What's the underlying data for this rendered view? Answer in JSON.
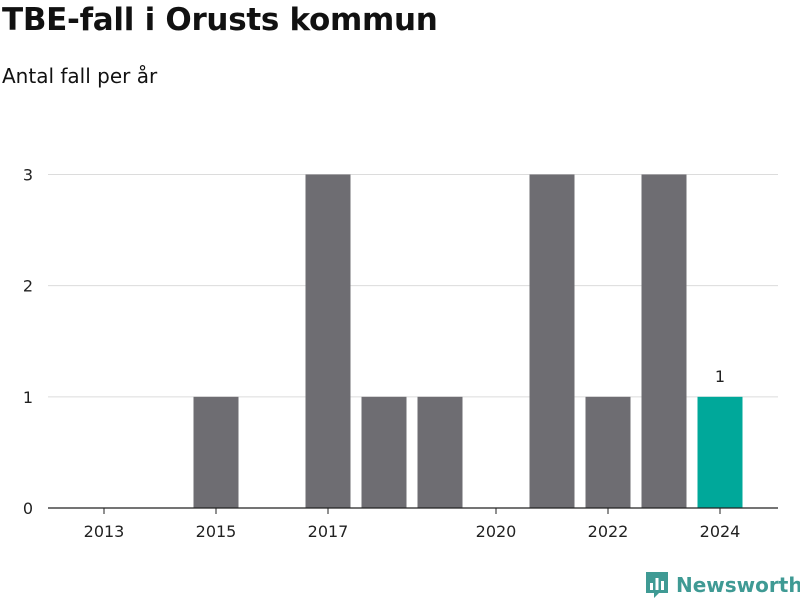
{
  "header": {
    "title": "TBE-fall i Orusts kommun",
    "subtitle": "Antal fall per år"
  },
  "brand": {
    "name": "Newsworthy",
    "color": "#3f9a94",
    "icon": "bar-chart-logo-icon"
  },
  "chart_data": {
    "type": "bar",
    "categories": [
      "2013",
      "2014",
      "2015",
      "2016",
      "2017",
      "2018",
      "2019",
      "2020",
      "2021",
      "2022",
      "2023",
      "2024"
    ],
    "values": [
      0,
      0,
      1,
      0,
      3,
      1,
      1,
      0,
      3,
      1,
      3,
      1
    ],
    "x_tick_labels": [
      "2013",
      "2015",
      "2017",
      "2020",
      "2022",
      "2024"
    ],
    "y_ticks": [
      0,
      1,
      2,
      3
    ],
    "ylim": [
      0,
      3.4
    ],
    "grid": true,
    "bar_color": "#6e6d72",
    "highlight_color": "#00a89a",
    "highlight_category": "2024",
    "data_labels": [
      {
        "category": "2024",
        "value": "1"
      }
    ]
  }
}
